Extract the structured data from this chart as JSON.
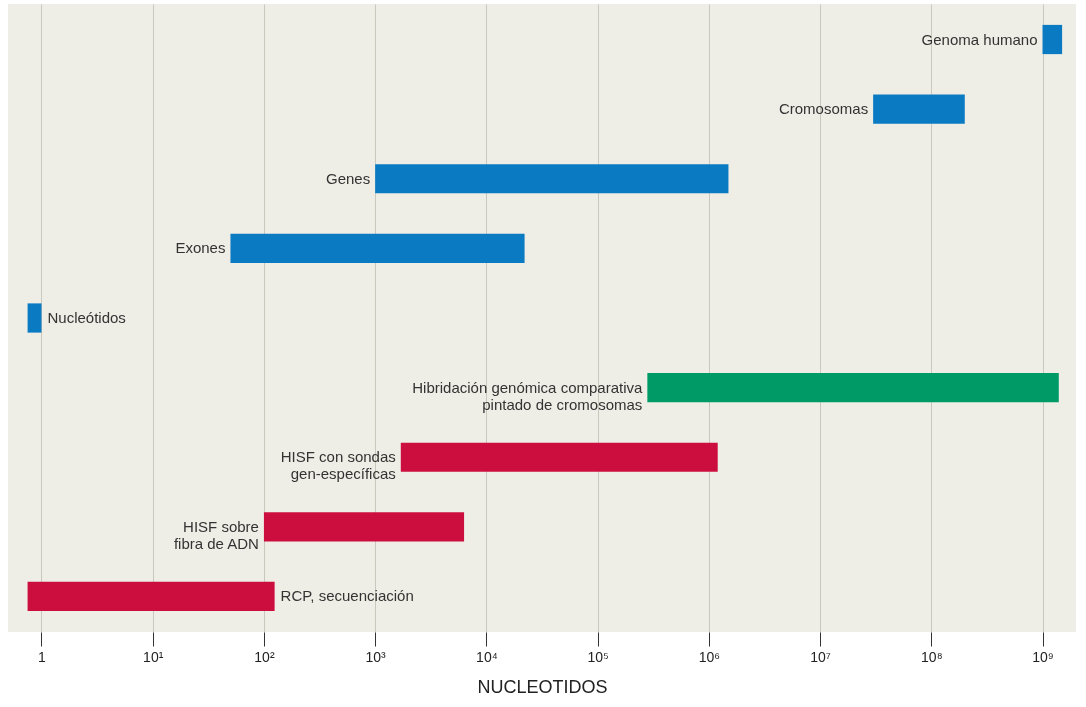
{
  "chart_data": {
    "type": "bar",
    "orientation": "horizontal",
    "log": "x",
    "xlabel": "NUCLEOTIDOS",
    "categories": [
      "Genoma humano",
      "Cromosomas",
      "Genes",
      "Exones",
      "Nucleótidos",
      "Hibridación genómica comparativa\npintado de cromosomas",
      "HISF con sondas\ngen-específicas",
      "HISF sobre\nfibra de ADN",
      "RCP, secuenciación"
    ],
    "base": [
      1000000000,
      30000000,
      1000,
      50,
      0.75,
      280000,
      1700,
      100,
      0.75
    ],
    "values": [
      500000000,
      170000000,
      1500000,
      22000,
      0.25,
      1400000000,
      1200000,
      6200,
      124
    ],
    "colors": [
      "#0a7bc2",
      "#0a7bc2",
      "#0a7bc2",
      "#0a7bc2",
      "#0a7bc2",
      "#009a66",
      "#cc0e3f",
      "#cc0e3f",
      "#cc0e3f"
    ],
    "xlim": [
      0.5,
      2000000000
    ],
    "xticks": [
      1,
      {
        "value": 10,
        "label": "10¹"
      },
      {
        "value": 100,
        "label": "10²"
      },
      {
        "value": 1000,
        "label": "10³"
      },
      {
        "value": 10000,
        "label": "10⁴"
      },
      {
        "value": 100000,
        "label": "10⁵"
      },
      {
        "value": 1000000,
        "label": "10⁶"
      },
      {
        "value": 10000000,
        "label": "10⁷"
      },
      {
        "value": 100000000,
        "label": "10⁸"
      },
      {
        "value": 1000000000,
        "label": "10⁹"
      }
    ],
    "grid": "x"
  }
}
